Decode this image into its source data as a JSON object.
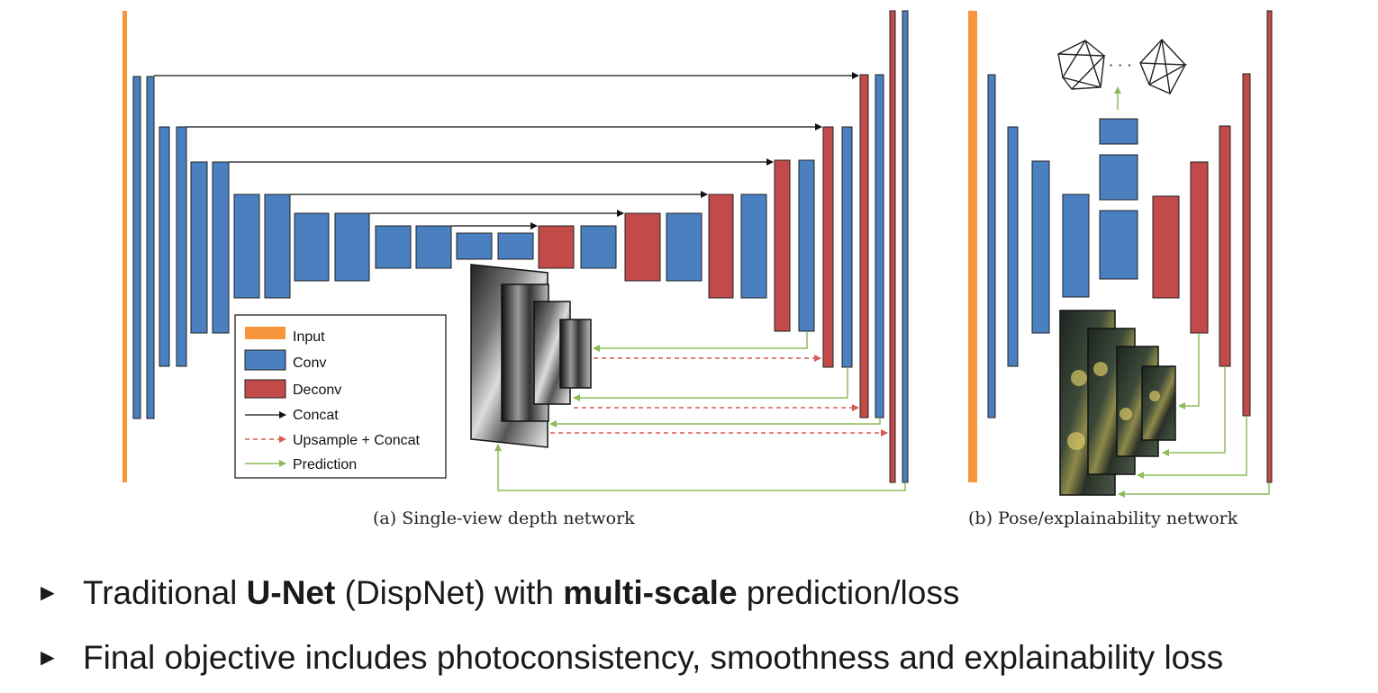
{
  "colors": {
    "input": "#F8963E",
    "conv": "#4A7FC0",
    "deconv": "#C24B4A",
    "concat": "#111111",
    "upsample": "#D65A55",
    "prediction": "#8DBB5A"
  },
  "legend": {
    "input": "Input",
    "conv": "Conv",
    "deconv": "Deconv",
    "concat": "Concat",
    "upsample": "Upsample + Concat",
    "prediction": "Prediction"
  },
  "captions": {
    "a": "(a) Single-view depth network",
    "b": "(b) Pose/explainability network"
  },
  "pose_ellipsis": "· · ·",
  "bullets": [
    {
      "pre": "Traditional ",
      "b1": "U-Net",
      "mid": " (DispNet) with ",
      "b2": "multi-scale",
      "post": " prediction/loss"
    },
    {
      "text": "Final objective includes photoconsistency, smoothness and explainability loss"
    }
  ]
}
